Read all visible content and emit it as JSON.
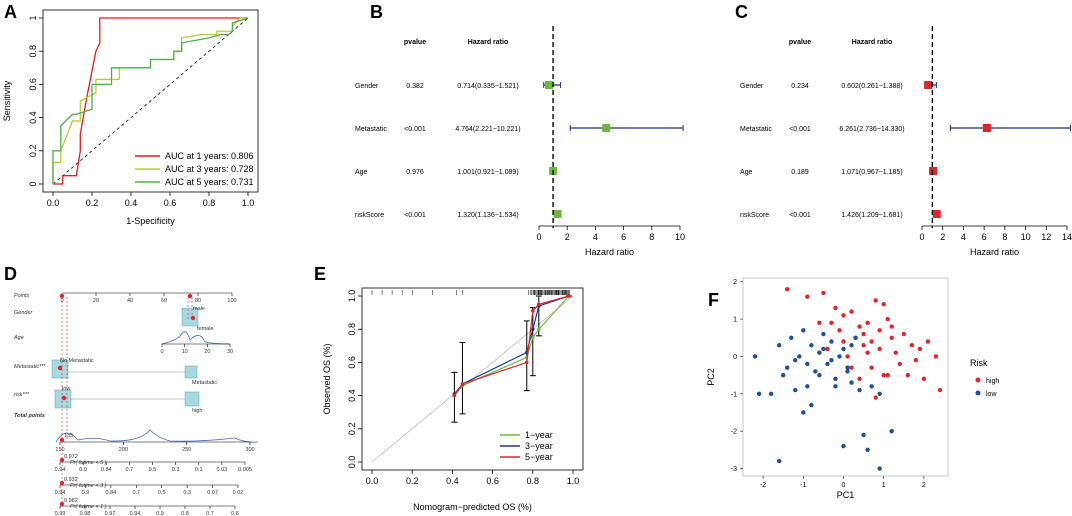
{
  "panels": [
    "A",
    "B",
    "C",
    "D",
    "E",
    "F"
  ],
  "chart_data": [
    {
      "panel": "A",
      "type": "line",
      "title": "",
      "xlabel": "1-Specificity",
      "ylabel": "Sensitivity",
      "xlim": [
        0,
        1
      ],
      "ylim": [
        0,
        1
      ],
      "xticks": [
        "0.0",
        "0.2",
        "0.4",
        "0.6",
        "0.8",
        "1.0"
      ],
      "yticks": [
        "0",
        "0.2",
        "0.4",
        "0.6",
        "0.8",
        "1"
      ],
      "diagonal": true,
      "series": [
        {
          "name": "AUC at 1 years: 0.806",
          "color": "#e41a1c",
          "x": [
            0,
            0.05,
            0.05,
            0.12,
            0.14,
            0.14,
            0.17,
            0.22,
            0.24,
            0.24,
            0.38,
            0.38,
            1,
            1
          ],
          "y": [
            0,
            0,
            0.05,
            0.05,
            0.2,
            0.3,
            0.5,
            0.8,
            0.85,
            1,
            1,
            1,
            1,
            1
          ]
        },
        {
          "name": "AUC at 3 years: 0.728",
          "color": "#b0d235",
          "x": [
            0,
            0,
            0.04,
            0.04,
            0.1,
            0.14,
            0.14,
            0.22,
            0.22,
            0.3,
            0.34,
            0.34,
            0.5,
            0.5,
            0.62,
            0.62,
            0.66,
            0.66,
            0.76,
            0.84,
            0.84,
            0.9,
            0.92,
            0.92,
            0.96,
            1
          ],
          "y": [
            0,
            0.13,
            0.13,
            0.2,
            0.38,
            0.38,
            0.5,
            0.55,
            0.63,
            0.63,
            0.63,
            0.7,
            0.7,
            0.75,
            0.75,
            0.8,
            0.8,
            0.88,
            0.9,
            0.9,
            0.92,
            0.92,
            0.92,
            0.95,
            1,
            1
          ]
        },
        {
          "name": "AUC at 5 years: 0.731",
          "color": "#4daf4a",
          "x": [
            0,
            0,
            0.04,
            0.04,
            0.1,
            0.12,
            0.2,
            0.2,
            0.3,
            0.3,
            0.5,
            0.5,
            0.62,
            0.62,
            0.66,
            0.66,
            0.8,
            0.86,
            0.9,
            0.92,
            0.92,
            1
          ],
          "y": [
            0,
            0.2,
            0.2,
            0.35,
            0.42,
            0.42,
            0.45,
            0.6,
            0.6,
            0.7,
            0.7,
            0.75,
            0.75,
            0.8,
            0.8,
            0.85,
            0.88,
            0.9,
            0.9,
            0.92,
            0.97,
            1
          ]
        }
      ]
    },
    {
      "panel": "B",
      "type": "forest",
      "header_pvalue": "pvalue",
      "header_hr": "Hazard ratio",
      "xlabel": "Hazard ratio",
      "xlim": [
        0,
        10
      ],
      "xticks": [
        0,
        2,
        4,
        6,
        8,
        10
      ],
      "ref_line": 1,
      "marker_color": "#6aba3b",
      "ci_color": "#1f2c78",
      "rows": [
        {
          "label": "Gender",
          "pvalue": "0.382",
          "hr_text": "0.714(0.335−1.521)",
          "hr": 0.714,
          "lo": 0.335,
          "hi": 1.521
        },
        {
          "label": "Metastatic",
          "pvalue": "<0.001",
          "hr_text": "4.764(2.221−10.221)",
          "hr": 4.764,
          "lo": 2.221,
          "hi": 10.221
        },
        {
          "label": "Age",
          "pvalue": "0.976",
          "hr_text": "1.001(0.921−1.089)",
          "hr": 1.001,
          "lo": 0.921,
          "hi": 1.089
        },
        {
          "label": "riskScore",
          "pvalue": "<0.001",
          "hr_text": "1.320(1.136−1.534)",
          "hr": 1.32,
          "lo": 1.136,
          "hi": 1.534
        }
      ]
    },
    {
      "panel": "C",
      "type": "forest",
      "header_pvalue": "pvalue",
      "header_hr": "Hazard ratio",
      "xlabel": "Hazard ratio",
      "xlim": [
        0,
        14
      ],
      "xticks": [
        0,
        2,
        4,
        6,
        8,
        10,
        12,
        14
      ],
      "ref_line": 1,
      "marker_color": "#e3242b",
      "ci_color": "#1f2c78",
      "rows": [
        {
          "label": "Gender",
          "pvalue": "0.234",
          "hr_text": "0.602(0.261−1.388)",
          "hr": 0.602,
          "lo": 0.261,
          "hi": 1.388
        },
        {
          "label": "Metastatic",
          "pvalue": "<0.001",
          "hr_text": "6.261(2.736−14.330)",
          "hr": 6.261,
          "lo": 2.736,
          "hi": 14.33
        },
        {
          "label": "Age",
          "pvalue": "0.189",
          "hr_text": "1.071(0.967−1.185)",
          "hr": 1.071,
          "lo": 0.967,
          "hi": 1.185
        },
        {
          "label": "riskScore",
          "pvalue": "<0.001",
          "hr_text": "1.426(1.209−1.681)",
          "hr": 1.426,
          "lo": 1.209,
          "hi": 1.681
        }
      ]
    },
    {
      "panel": "D",
      "type": "nomogram",
      "rows": [
        {
          "label": "Points",
          "ticks": [
            "0",
            "20",
            "40",
            "60",
            "80",
            "100"
          ]
        },
        {
          "label": "Gender",
          "levels": [
            "male",
            "female"
          ]
        },
        {
          "label": "Age",
          "ticks": [
            "0",
            "10",
            "20",
            "30"
          ]
        },
        {
          "label": "Metastatic***",
          "levels": [
            "No Metastatic",
            "Metastatic"
          ]
        },
        {
          "label": "risk***",
          "levels": [
            "low",
            "high"
          ]
        },
        {
          "label": "Total points",
          "ticks": [
            "150",
            "200",
            "250",
            "300"
          ]
        },
        {
          "label": "Pr( futime < 5 )",
          "ticks": [
            "0.94",
            "0.9",
            "0.84",
            "0.7",
            "0.5",
            "0.3",
            "0.1",
            "0.03",
            "0.005"
          ]
        },
        {
          "label": "Pr( futime < 3 )",
          "ticks": [
            "0.94",
            "0.9",
            "0.84",
            "0.7",
            "0.5",
            "0.3",
            "0.07",
            "0.02"
          ]
        },
        {
          "label": "Pr( futime < 1 )",
          "ticks": [
            "0.99",
            "0.98",
            "0.97",
            "0.94",
            "0.9",
            "0.8",
            "0.7",
            "0.6"
          ]
        }
      ],
      "annotations": [
        "135",
        "0.972",
        "0.932",
        "0.982"
      ]
    },
    {
      "panel": "E",
      "type": "line",
      "title": "",
      "xlabel": "Nomogram−predicted OS (%)",
      "ylabel": "Observed OS (%)",
      "xlim": [
        0,
        1
      ],
      "ylim": [
        0,
        1
      ],
      "xticks": [
        "0.0",
        "0.2",
        "0.4",
        "0.6",
        "0.8",
        "1.0"
      ],
      "yticks": [
        "0.0",
        "0.2",
        "0.4",
        "0.6",
        "0.8",
        "1.0"
      ],
      "diagonal": true,
      "series": [
        {
          "name": "1−year",
          "color": "#6aba3b",
          "x": [
            0.41,
            0.45,
            0.77,
            0.8,
            0.83,
            0.98
          ],
          "y": [
            0.4,
            0.46,
            0.63,
            0.75,
            0.8,
            1.0
          ],
          "lo": [],
          "hi": []
        },
        {
          "name": "3−year",
          "color": "#1f3c8c",
          "x": [
            0.41,
            0.45,
            0.77,
            0.8,
            0.83,
            0.98
          ],
          "y": [
            0.41,
            0.47,
            0.66,
            0.8,
            0.94,
            1.0
          ]
        },
        {
          "name": "5−year",
          "color": "#e3242b",
          "x": [
            0.41,
            0.45,
            0.77,
            0.8,
            0.83,
            0.98
          ],
          "y": [
            0.4,
            0.47,
            0.6,
            0.91,
            0.95,
            1.0
          ]
        }
      ],
      "errorbars": [
        {
          "x": 0.41,
          "lo": 0.24,
          "hi": 0.54
        },
        {
          "x": 0.45,
          "lo": 0.29,
          "hi": 0.72
        },
        {
          "x": 0.77,
          "lo": 0.43,
          "hi": 0.85
        },
        {
          "x": 0.8,
          "lo": 0.52,
          "hi": 0.93
        },
        {
          "x": 0.83,
          "lo": 0.76,
          "hi": 1.0
        },
        {
          "x": 0.98,
          "lo": 1.0,
          "hi": 1.0
        }
      ]
    },
    {
      "panel": "F",
      "type": "scatter",
      "xlabel": "PC1",
      "ylabel": "PC2",
      "xlim": [
        -2.5,
        2.6
      ],
      "ylim": [
        -3.2,
        2.1
      ],
      "xticks": [
        -2,
        -1,
        0,
        1,
        2
      ],
      "yticks": [
        -3,
        -2,
        -1,
        0,
        1,
        2
      ],
      "legend_title": "Risk",
      "series": [
        {
          "name": "high",
          "color": "#e3242b",
          "x": [
            -1.4,
            -0.9,
            -0.5,
            -0.2,
            -0.3,
            0.0,
            0.2,
            0.4,
            0.6,
            0.8,
            1.0,
            1.1,
            1.2,
            0.9,
            0.7,
            0.5,
            0.3,
            -0.1,
            -0.4,
            0.1,
            0.6,
            0.9,
            1.2,
            1.5,
            1.7,
            1.9,
            2.1,
            2.3,
            2.4,
            1.4,
            1.0,
            0.8,
            0.4,
            0.2,
            1.6,
            1.8,
            2.0,
            0.7,
            1.3,
            1.1,
            0.5,
            -0.6,
            0.0
          ],
          "y": [
            1.8,
            1.6,
            1.7,
            1.3,
            0.9,
            1.1,
            1.2,
            0.8,
            0.9,
            1.5,
            1.4,
            1.0,
            0.8,
            0.7,
            0.4,
            0.6,
            0.5,
            0.7,
            0.2,
            0.0,
            0.1,
            0.2,
            0.5,
            0.6,
            0.3,
            0.2,
            0.4,
            0.0,
            -0.9,
            -0.2,
            -0.5,
            -1.1,
            -0.6,
            -0.3,
            -0.5,
            -0.1,
            -0.6,
            -0.3,
            0.1,
            -0.5,
            0.3,
            0.9,
            0.4
          ]
        },
        {
          "name": "low",
          "color": "#1f4e9c",
          "x": [
            -2.2,
            -2.1,
            -1.8,
            -1.6,
            -1.5,
            -1.3,
            -1.2,
            -1.1,
            -1.0,
            -0.9,
            -0.8,
            -0.7,
            -0.6,
            -0.5,
            -0.4,
            -0.3,
            -0.2,
            -0.1,
            0.0,
            0.1,
            0.2,
            0.3,
            0.4,
            -1.4,
            -1.2,
            -0.8,
            -0.6,
            -0.3,
            0.0,
            0.2,
            0.5,
            0.7,
            0.9,
            1.2,
            -1.0,
            -0.5,
            -0.9,
            0.1,
            0.6,
            0.9,
            -1.6,
            -0.2
          ],
          "y": [
            0.0,
            -1.0,
            -1.0,
            0.3,
            -0.5,
            0.5,
            -0.1,
            0.0,
            0.7,
            -0.2,
            0.3,
            -0.4,
            0.1,
            0.6,
            -0.2,
            0.4,
            -0.6,
            0.0,
            0.2,
            -0.3,
            -0.7,
            0.5,
            -0.9,
            -0.3,
            -0.9,
            -1.3,
            -0.5,
            -0.1,
            -2.4,
            0.3,
            -2.1,
            -0.8,
            -1.0,
            -2.0,
            -1.5,
            0.2,
            -0.8,
            -0.4,
            -2.5,
            -3.0,
            -2.8,
            -0.8
          ]
        }
      ]
    }
  ]
}
